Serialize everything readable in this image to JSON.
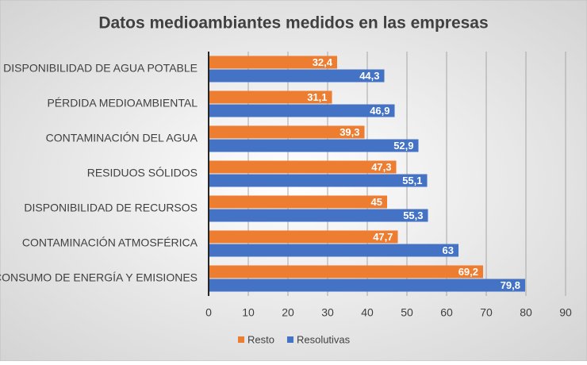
{
  "chart_data": {
    "type": "hbar",
    "title": "Datos medioambiantes medidos en las empresas",
    "categories": [
      "DISPONIBILIDAD DE AGUA POTABLE",
      "PÉRDIDA MEDIOAMBIENTAL",
      "CONTAMINACIÓN DEL AGUA",
      "RESIDUOS SÓLIDOS",
      "DISPONIBILIDAD DE RECURSOS",
      "CONTAMINACIÓN ATMOSFÉRICA",
      "CONSUMO DE ENERGÍA Y EMISIONES"
    ],
    "series": [
      {
        "name": "Resto",
        "color": "#ed7d31",
        "values": [
          32.4,
          31.1,
          39.3,
          47.3,
          45,
          47.7,
          69.2
        ],
        "value_labels": [
          "32,4",
          "31,1",
          "39,3",
          "47,3",
          "45",
          "47,7",
          "69,2"
        ]
      },
      {
        "name": "Resolutivas",
        "color": "#4472c4",
        "values": [
          44.3,
          46.9,
          52.9,
          55.1,
          55.3,
          63,
          79.8
        ],
        "value_labels": [
          "44,3",
          "46,9",
          "52,9",
          "55,1",
          "55,3",
          "63",
          "79,8"
        ]
      }
    ],
    "xlim": [
      0,
      90
    ],
    "xticks": [
      0,
      10,
      20,
      30,
      40,
      50,
      60,
      70,
      80,
      90
    ],
    "grid": true,
    "legend": "bottom"
  }
}
